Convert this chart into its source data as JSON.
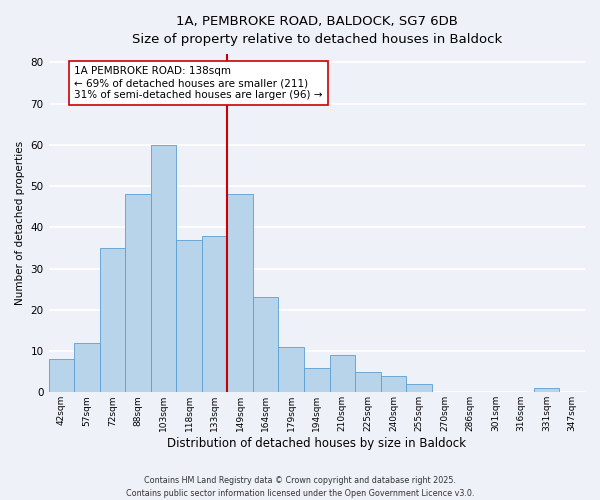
{
  "title_line1": "1A, PEMBROKE ROAD, BALDOCK, SG7 6DB",
  "title_line2": "Size of property relative to detached houses in Baldock",
  "xlabel": "Distribution of detached houses by size in Baldock",
  "ylabel": "Number of detached properties",
  "footnote1": "Contains HM Land Registry data © Crown copyright and database right 2025.",
  "footnote2": "Contains public sector information licensed under the Open Government Licence v3.0.",
  "bar_labels": [
    "42sqm",
    "57sqm",
    "72sqm",
    "88sqm",
    "103sqm",
    "118sqm",
    "133sqm",
    "149sqm",
    "164sqm",
    "179sqm",
    "194sqm",
    "210sqm",
    "225sqm",
    "240sqm",
    "255sqm",
    "270sqm",
    "286sqm",
    "301sqm",
    "316sqm",
    "331sqm",
    "347sqm"
  ],
  "bar_values": [
    8,
    12,
    35,
    48,
    60,
    37,
    38,
    48,
    23,
    11,
    6,
    9,
    5,
    4,
    2,
    0,
    0,
    0,
    0,
    1,
    0
  ],
  "bar_color": "#b8d4ea",
  "bar_edge_color": "#5a9fd4",
  "vline_x_index": 7.0,
  "vline_color": "#cc0000",
  "annotation_title": "1A PEMBROKE ROAD: 138sqm",
  "annotation_line1": "← 69% of detached houses are smaller (211)",
  "annotation_line2": "31% of semi-detached houses are larger (96) →",
  "annotation_box_color": "#ffffff",
  "annotation_box_edge": "#cc0000",
  "ylim": [
    0,
    82
  ],
  "yticks": [
    0,
    10,
    20,
    30,
    40,
    50,
    60,
    70,
    80
  ],
  "background_color": "#eef2f8",
  "grid_color": "#ffffff",
  "title_fontsize": 10,
  "subtitle_fontsize": 9
}
